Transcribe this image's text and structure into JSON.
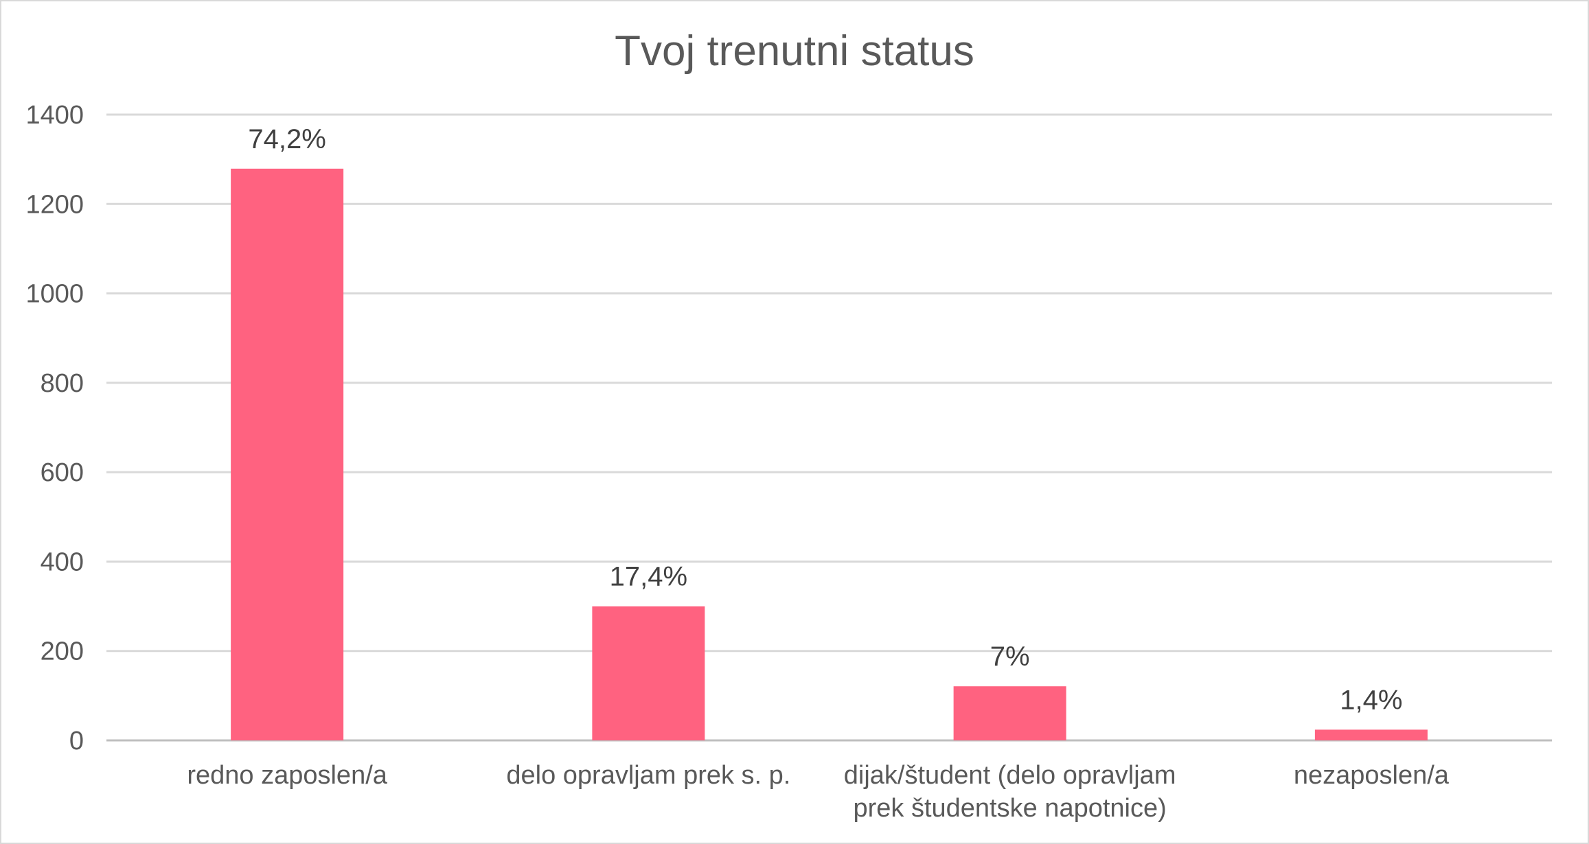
{
  "chart_data": {
    "type": "bar",
    "title": "Tvoj trenutni status",
    "categories": [
      [
        "redno zaposlen/a"
      ],
      [
        "delo opravljam prek s. p."
      ],
      [
        "dijak/študent (delo opravljam",
        "prek študentske napotnice)"
      ],
      [
        "nezaposlen/a"
      ]
    ],
    "values": [
      1279,
      300,
      121,
      24
    ],
    "data_labels": [
      "74,2%",
      "17,4%",
      "7%",
      "1,4%"
    ],
    "ylim": [
      0,
      1400
    ],
    "yticks": [
      0,
      200,
      400,
      600,
      800,
      1000,
      1200,
      1400
    ],
    "grid": true,
    "legend": "none",
    "colors": {
      "bar": "#ff6280",
      "grid": "#d9d9d9",
      "text": "#595959"
    }
  }
}
